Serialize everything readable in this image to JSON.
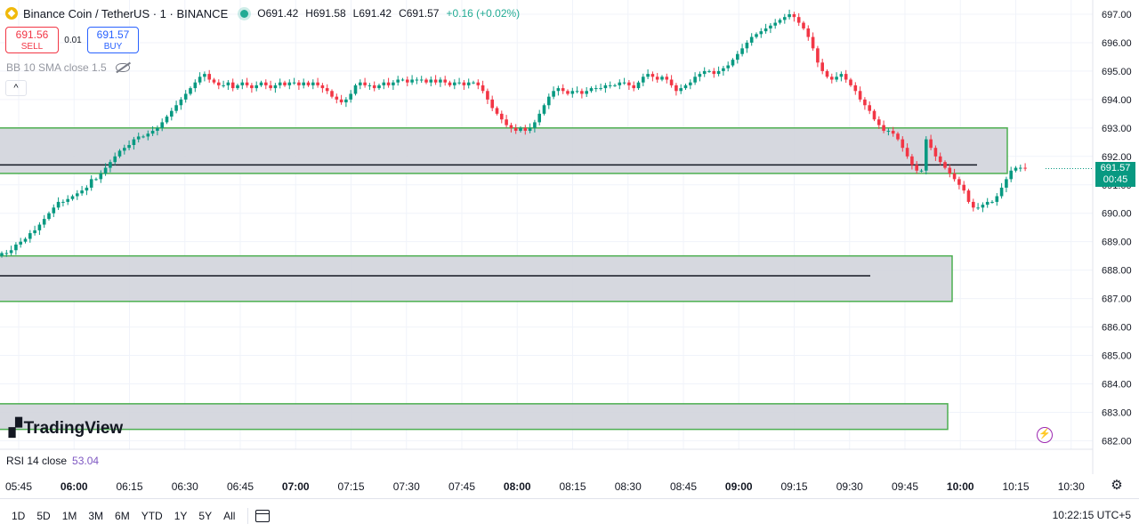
{
  "header": {
    "symbol": "Binance Coin / TetherUS · 1 · BINANCE",
    "open": "O691.42",
    "high": "H691.58",
    "low": "L691.42",
    "close": "C691.57",
    "change": "+0.16 (+0.02%)"
  },
  "trade": {
    "sell_price": "691.56",
    "sell_label": "SELL",
    "spread": "0.01",
    "buy_price": "691.57",
    "buy_label": "BUY"
  },
  "indicators": {
    "bb_label": "BB 10 SMA close 1.5",
    "collapse_glyph": "^",
    "rsi_label": "RSI 14 close",
    "rsi_value": "53.04"
  },
  "last_price": {
    "price": "691.57",
    "countdown": "00:45"
  },
  "logo_text": "TradingView",
  "bottom": {
    "ranges": [
      "1D",
      "5D",
      "1M",
      "3M",
      "6M",
      "YTD",
      "1Y",
      "5Y",
      "All"
    ],
    "clock": "10:22:15 UTC+5"
  },
  "colors": {
    "up": "#089981",
    "down": "#f23645",
    "zone_border": "#4caf50",
    "zone_fill": "#d1d4dc"
  },
  "chart_data": {
    "type": "candlestick",
    "y_ticks": [
      "697.00",
      "696.00",
      "695.00",
      "694.00",
      "693.00",
      "692.00",
      "691.00",
      "690.00",
      "689.00",
      "688.00",
      "687.00",
      "686.00",
      "685.00",
      "684.00",
      "683.00",
      "682.00"
    ],
    "ylim": [
      681.7,
      697.5
    ],
    "x_ticks": [
      {
        "label": "05:45",
        "major": false
      },
      {
        "label": "06:00",
        "major": true
      },
      {
        "label": "06:15",
        "major": false
      },
      {
        "label": "06:30",
        "major": false
      },
      {
        "label": "06:45",
        "major": false
      },
      {
        "label": "07:00",
        "major": true
      },
      {
        "label": "07:15",
        "major": false
      },
      {
        "label": "07:30",
        "major": false
      },
      {
        "label": "07:45",
        "major": false
      },
      {
        "label": "08:00",
        "major": true
      },
      {
        "label": "08:15",
        "major": false
      },
      {
        "label": "08:30",
        "major": false
      },
      {
        "label": "08:45",
        "major": false
      },
      {
        "label": "09:00",
        "major": true
      },
      {
        "label": "09:15",
        "major": false
      },
      {
        "label": "09:30",
        "major": false
      },
      {
        "label": "09:45",
        "major": false
      },
      {
        "label": "10:00",
        "major": true
      },
      {
        "label": "10:15",
        "major": false
      },
      {
        "label": "10:30",
        "major": false
      }
    ],
    "start_time": "05:45",
    "close_series": [
      688.6,
      688.6,
      688.7,
      688.9,
      689.0,
      689.1,
      689.3,
      689.4,
      689.6,
      689.8,
      690.0,
      690.2,
      690.4,
      690.4,
      690.5,
      690.6,
      690.7,
      690.8,
      690.9,
      691.2,
      691.2,
      691.4,
      691.6,
      691.8,
      692.0,
      692.2,
      692.3,
      692.4,
      692.6,
      692.7,
      692.7,
      692.8,
      692.9,
      693.0,
      693.2,
      693.4,
      693.6,
      693.8,
      694.0,
      694.2,
      694.4,
      694.6,
      694.8,
      694.9,
      694.7,
      694.6,
      694.5,
      694.5,
      694.6,
      694.4,
      694.5,
      694.6,
      694.5,
      694.4,
      694.5,
      694.6,
      694.5,
      694.4,
      694.5,
      694.6,
      694.5,
      694.6,
      694.6,
      694.5,
      694.6,
      694.5,
      694.6,
      694.5,
      694.4,
      694.3,
      694.1,
      694.0,
      693.9,
      694.0,
      694.2,
      694.5,
      694.6,
      694.5,
      694.5,
      694.4,
      694.5,
      694.6,
      694.5,
      694.6,
      694.7,
      694.7,
      694.6,
      694.7,
      694.7,
      694.7,
      694.6,
      694.7,
      694.6,
      694.7,
      694.6,
      694.5,
      694.6,
      694.6,
      694.5,
      694.6,
      694.6,
      694.5,
      694.3,
      694.0,
      693.7,
      693.5,
      693.3,
      693.1,
      693.0,
      692.9,
      693.0,
      692.9,
      693.0,
      693.2,
      693.5,
      693.8,
      694.1,
      694.3,
      694.4,
      694.3,
      694.2,
      694.3,
      694.3,
      694.2,
      694.3,
      694.4,
      694.4,
      694.4,
      694.5,
      694.5,
      694.5,
      694.6,
      694.6,
      694.5,
      694.4,
      694.6,
      694.8,
      694.9,
      694.8,
      694.7,
      694.8,
      694.7,
      694.5,
      694.3,
      694.4,
      694.5,
      694.6,
      694.8,
      694.9,
      695.0,
      695.0,
      694.9,
      695.0,
      695.1,
      695.2,
      695.4,
      695.6,
      695.8,
      696.0,
      696.2,
      696.3,
      696.4,
      696.5,
      696.6,
      696.7,
      696.8,
      696.9,
      697.0,
      696.9,
      696.7,
      696.5,
      696.2,
      695.8,
      695.3,
      695.0,
      694.8,
      694.7,
      694.8,
      694.9,
      694.7,
      694.5,
      694.3,
      694.0,
      693.8,
      693.6,
      693.3,
      693.1,
      692.9,
      692.9,
      692.8,
      692.6,
      692.3,
      692.0,
      691.7,
      691.5,
      691.5,
      692.6,
      692.3,
      692.0,
      691.8,
      691.6,
      691.4,
      691.2,
      691.0,
      690.8,
      690.4,
      690.2,
      690.2,
      690.3,
      690.4,
      690.4,
      690.6,
      690.9,
      691.2,
      691.5,
      691.6,
      691.6,
      691.57
    ],
    "zones": [
      {
        "top": 693.0,
        "bottom": 691.4,
        "line": 691.7
      },
      {
        "top": 688.5,
        "bottom": 686.9,
        "line": 687.8
      },
      {
        "top": 683.3,
        "bottom": 682.4
      }
    ]
  }
}
